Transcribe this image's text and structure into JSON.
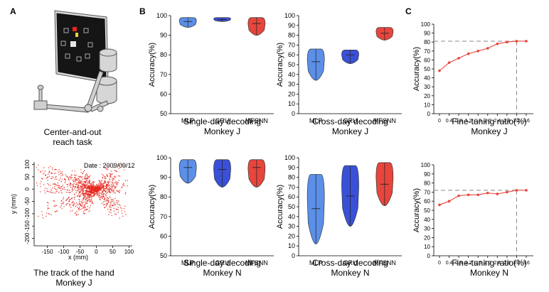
{
  "panels": {
    "a": "A",
    "b": "B",
    "c": "C"
  },
  "task": {
    "line1": "Center-and-out",
    "line2": "reach task"
  },
  "track": {
    "date": "Date : 2009/09/12",
    "xlabel": "x (mm)",
    "ylabel": "y (mm)",
    "xticks": [
      -150,
      -100,
      -50,
      0,
      50,
      100
    ],
    "yticks": [
      100,
      50,
      0,
      -50,
      -100,
      -150,
      -200
    ],
    "caption1": "The track of  the hand",
    "caption2": "Monkey J"
  },
  "colors": {
    "mlp": "#5b8fe8",
    "gru": "#3a50d8",
    "mfsnn": "#e8453c",
    "finetune_line": "#e8453c",
    "track_dots": "#e8291f",
    "reference_line": "#888888"
  },
  "chart_data": [
    {
      "id": "single-j",
      "type": "violin",
      "categories": [
        "MLP",
        "GRU",
        "MFSNN"
      ],
      "ylabel": "Accuracy(%)",
      "ylim": [
        50,
        100
      ],
      "yticks": [
        50,
        60,
        70,
        80,
        90,
        100
      ],
      "caption1": "Single-day decoding",
      "caption2": "Monkey J",
      "series": [
        {
          "name": "MLP",
          "min": 94,
          "max": 99,
          "median": 97
        },
        {
          "name": "GRU",
          "min": 97,
          "max": 99,
          "median": 98
        },
        {
          "name": "MFSNN",
          "min": 90,
          "max": 99,
          "median": 96
        }
      ]
    },
    {
      "id": "cross-j",
      "type": "violin",
      "categories": [
        "MLP",
        "GRU",
        "MFSNN"
      ],
      "ylabel": "Accuracy(%)",
      "ylim": [
        0,
        100
      ],
      "yticks": [
        0,
        10,
        20,
        30,
        40,
        50,
        60,
        70,
        80,
        90,
        100
      ],
      "caption1": "Cross-day decoding",
      "caption2": "Monkey J",
      "series": [
        {
          "name": "MLP",
          "min": 34,
          "max": 66,
          "median": 53
        },
        {
          "name": "GRU",
          "min": 51,
          "max": 65,
          "median": 60
        },
        {
          "name": "MFSNN",
          "min": 75,
          "max": 88,
          "median": 82
        }
      ]
    },
    {
      "id": "single-n",
      "type": "violin",
      "categories": [
        "MLP",
        "GRU",
        "MFSNN"
      ],
      "ylabel": "Accuracy(%)",
      "ylim": [
        50,
        100
      ],
      "yticks": [
        50,
        60,
        70,
        80,
        90,
        100
      ],
      "caption1": "Single-day decoding",
      "caption2": "Monkey N",
      "series": [
        {
          "name": "MLP",
          "min": 87,
          "max": 99,
          "median": 95
        },
        {
          "name": "GRU",
          "min": 85,
          "max": 99,
          "median": 94
        },
        {
          "name": "MFSNN",
          "min": 85,
          "max": 99,
          "median": 95
        }
      ]
    },
    {
      "id": "cross-n",
      "type": "violin",
      "categories": [
        "MLP",
        "GRU",
        "MFSNN"
      ],
      "ylabel": "Accuracy(%)",
      "ylim": [
        0,
        100
      ],
      "yticks": [
        0,
        10,
        20,
        30,
        40,
        50,
        60,
        70,
        80,
        90,
        100
      ],
      "caption1": "Cross-day decoding",
      "caption2": "Monkey N",
      "series": [
        {
          "name": "MLP",
          "min": 12,
          "max": 83,
          "median": 48
        },
        {
          "name": "GRU",
          "min": 30,
          "max": 92,
          "median": 61
        },
        {
          "name": "MFSNN",
          "min": 51,
          "max": 95,
          "median": 73
        }
      ]
    },
    {
      "id": "finetune-j",
      "type": "line",
      "xlabel": "Fine-tuning ratio(%)",
      "ylabel": "Accuracy(%)",
      "caption2": "Monkey J",
      "x": [
        0,
        0.4,
        0.8,
        1.2,
        1.6,
        2.0,
        2.4,
        2.8,
        3.2,
        3.6
      ],
      "xticks": [
        "0",
        "0.4",
        "0.8",
        "1.2",
        "1.6",
        "2.0",
        "2.4",
        "2.8",
        "3.2",
        "3.6"
      ],
      "y": [
        48,
        57,
        62,
        67,
        70,
        73,
        78,
        80,
        81,
        81
      ],
      "ylim": [
        0,
        100
      ],
      "yticks": [
        0,
        10,
        20,
        30,
        40,
        50,
        60,
        70,
        80,
        90,
        100
      ],
      "reference_y": 81,
      "reference_x": 3.2
    },
    {
      "id": "finetune-n",
      "type": "line",
      "xlabel": "Fine-tuning ratio(%)",
      "ylabel": "Accuracy(%)",
      "caption2": "Monkey N",
      "x": [
        0,
        0.4,
        0.8,
        1.2,
        1.6,
        2.0,
        2.4,
        2.8,
        3.2,
        3.6
      ],
      "xticks": [
        "0",
        "0.4",
        "0.8",
        "1.2",
        "1.6",
        "2.0",
        "2.4",
        "2.8",
        "3.2",
        "3.6"
      ],
      "y": [
        56,
        60,
        66,
        67,
        67,
        69,
        68,
        70,
        72,
        72
      ],
      "ylim": [
        0,
        100
      ],
      "yticks": [
        0,
        10,
        20,
        30,
        40,
        50,
        60,
        70,
        80,
        90,
        100
      ],
      "reference_y": 72,
      "reference_x": 3.2
    }
  ]
}
